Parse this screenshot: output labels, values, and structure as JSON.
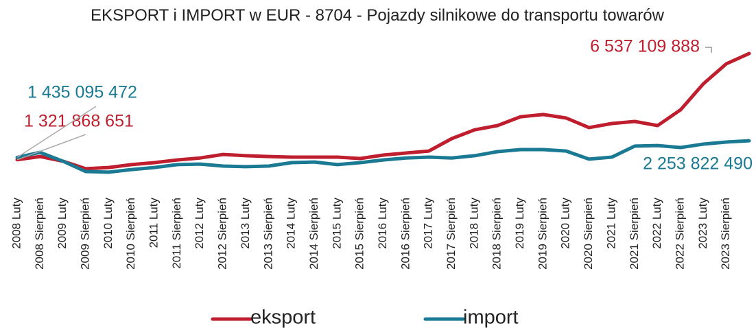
{
  "chart_data": {
    "type": "line",
    "title": "EKSPORT i IMPORT w EUR - 8704 - Pojazdy silnikowe do transportu towarów",
    "categories": [
      "2008 Luty",
      "2008 Sierpień",
      "2009 Luty",
      "2009 Sierpień",
      "2010 Luty",
      "2010 Sierpień",
      "2011 Luty",
      "2011 Sierpień",
      "2012 Luty",
      "2012 Sierpień",
      "2013 Luty",
      "2013 Sierpień",
      "2014 Luty",
      "2014 Sierpień",
      "2015 Luty",
      "2015 Sierpień",
      "2016 Luty",
      "2016 Sierpień",
      "2017 Luty",
      "2017 Sierpień",
      "2018 Luty",
      "2018 Sierpień",
      "2019 Luty",
      "2019 Sierpień",
      "2020 Luty",
      "2020 Sierpień",
      "2021 Luty",
      "2021 Sierpień",
      "2022 Luty",
      "2022 Sierpień",
      "2023 Luty",
      "2023 Sierpień",
      null
    ],
    "series": [
      {
        "name": "eksport",
        "color": "#be1e2d",
        "values": [
          1321868651,
          1480000000,
          1250000000,
          880000000,
          940000000,
          1080000000,
          1180000000,
          1310000000,
          1410000000,
          1580000000,
          1520000000,
          1480000000,
          1450000000,
          1450000000,
          1450000000,
          1380000000,
          1550000000,
          1650000000,
          1750000000,
          2360000000,
          2790000000,
          3000000000,
          3430000000,
          3540000000,
          3370000000,
          2900000000,
          3100000000,
          3200000000,
          3000000000,
          3770000000,
          5050000000,
          6030000000,
          6537109888
        ],
        "value_labels": [
          "1 321 868 651",
          null,
          null,
          null,
          null,
          null,
          null,
          null,
          null,
          null,
          null,
          null,
          null,
          null,
          null,
          null,
          null,
          null,
          null,
          null,
          null,
          null,
          null,
          null,
          null,
          null,
          null,
          null,
          null,
          null,
          null,
          null,
          "6 537 109 888"
        ]
      },
      {
        "name": "import",
        "color": "#1a7a94",
        "values": [
          1435095472,
          1680000000,
          1250000000,
          740000000,
          710000000,
          840000000,
          940000000,
          1080000000,
          1110000000,
          1010000000,
          980000000,
          1010000000,
          1180000000,
          1210000000,
          1080000000,
          1180000000,
          1310000000,
          1410000000,
          1450000000,
          1410000000,
          1520000000,
          1720000000,
          1820000000,
          1820000000,
          1750000000,
          1350000000,
          1450000000,
          1990000000,
          2020000000,
          1920000000,
          2090000000,
          2190000000,
          2253822490
        ],
        "value_labels": [
          "1 435 095 472",
          null,
          null,
          null,
          null,
          null,
          null,
          null,
          null,
          null,
          null,
          null,
          null,
          null,
          null,
          null,
          null,
          null,
          null,
          null,
          null,
          null,
          null,
          null,
          null,
          null,
          null,
          null,
          null,
          null,
          null,
          null,
          "2 253 822 490"
        ]
      }
    ]
  }
}
